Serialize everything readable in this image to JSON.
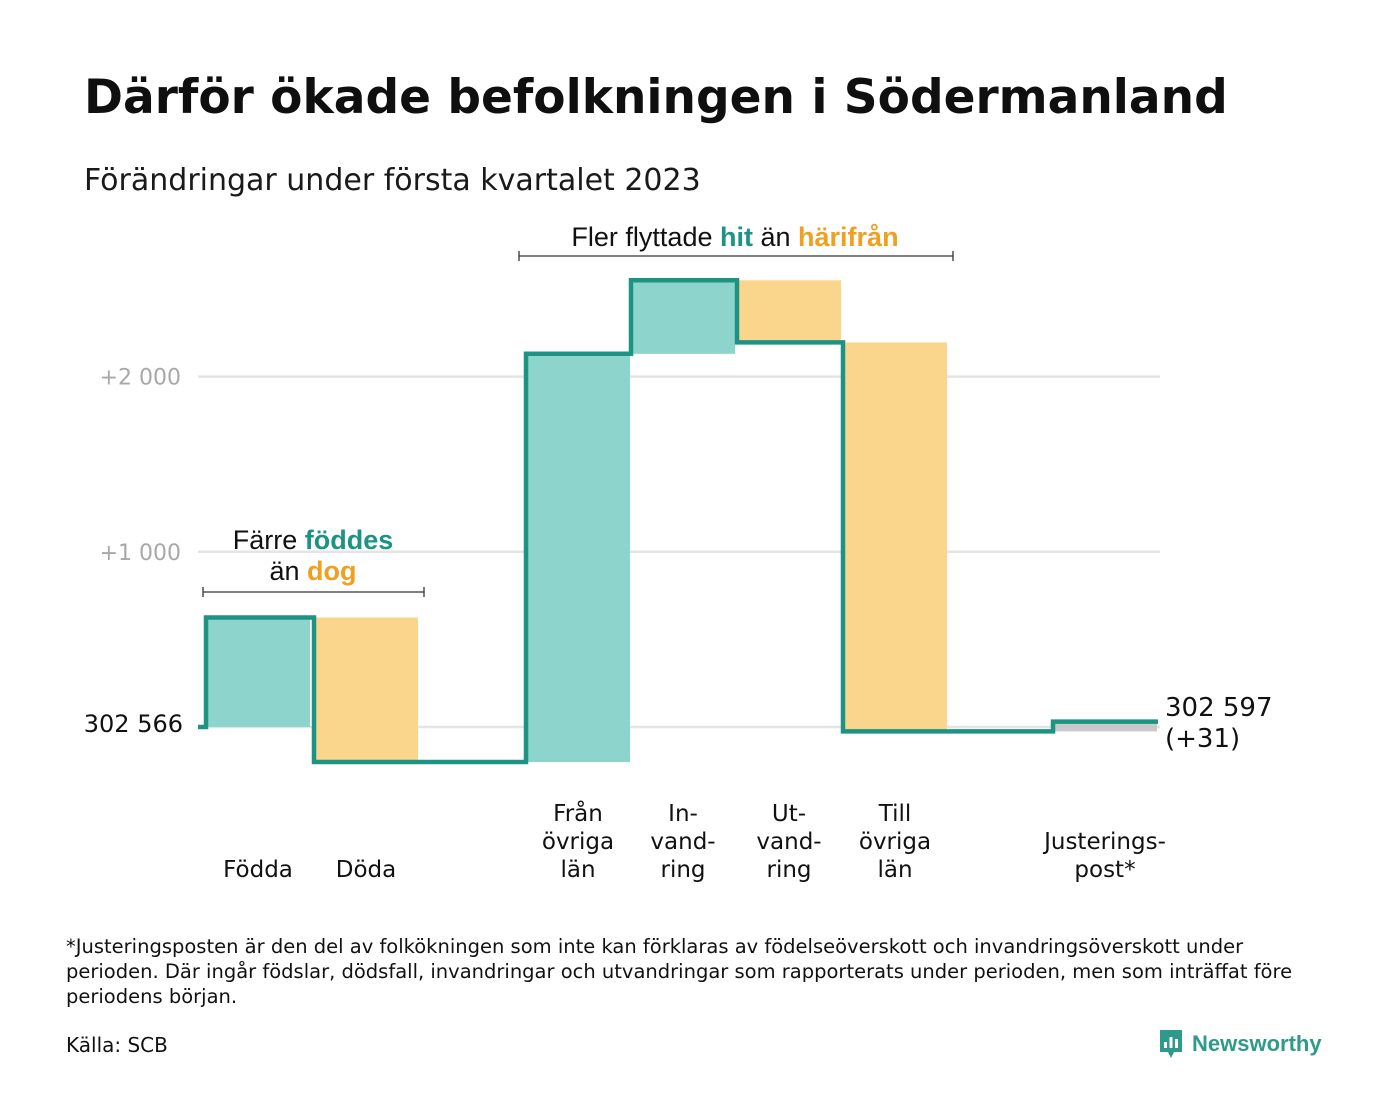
{
  "header": {
    "title": "Därför ökade befolkningen i Södermanland",
    "subtitle": "Förändringar under första kvartalet 2023"
  },
  "chart_data": {
    "type": "waterfall",
    "base_population": 302566,
    "base_label": "302 566",
    "end_label_value": "302 597",
    "end_label_change": "(+31)",
    "net_change": 31,
    "y_axis": {
      "unit": "cumulative change",
      "range": [
        -300,
        2600
      ],
      "gridlines": [
        0,
        1000,
        2000
      ],
      "tick_labels": [
        {
          "value": 1000,
          "label": "+1 000"
        },
        {
          "value": 2000,
          "label": "+2 000"
        }
      ],
      "grid": true
    },
    "steps": [
      {
        "id": "fodda",
        "label_lines": [
          "Födda"
        ],
        "change": 625,
        "kind": "in"
      },
      {
        "id": "doda",
        "label_lines": [
          "Döda"
        ],
        "change": -825,
        "kind": "out"
      },
      {
        "id": "fran",
        "label_lines": [
          "Från",
          "övriga",
          "län"
        ],
        "change": 2330,
        "kind": "in"
      },
      {
        "id": "in",
        "label_lines": [
          "In-",
          "vand-",
          "ring"
        ],
        "change": 420,
        "kind": "in"
      },
      {
        "id": "ut",
        "label_lines": [
          "Ut-",
          "vand-",
          "ring"
        ],
        "change": -355,
        "kind": "out"
      },
      {
        "id": "till",
        "label_lines": [
          "Till",
          "övriga",
          "län"
        ],
        "change": -2220,
        "kind": "out"
      },
      {
        "id": "just",
        "label_lines": [
          "Justerings-",
          "post*"
        ],
        "change": 56,
        "kind": "adjust"
      }
    ],
    "annotations": [
      {
        "id": "birth",
        "line1_parts": [
          "Färre ",
          "föddes"
        ],
        "line2_parts": [
          "än ",
          "dog"
        ]
      },
      {
        "id": "migration",
        "parts": [
          "Fler flyttade ",
          "hit",
          " än ",
          "härifrån"
        ]
      }
    ],
    "colors": {
      "in_fill": "#8dd5cc",
      "out_fill": "#fad68c",
      "adjust_fill": "#c9c9c9",
      "line": "#1d9384",
      "highlight_in": "#1d9384",
      "highlight_out": "#f0a020",
      "grid": "#e4e4e4"
    }
  },
  "footnote": "*Justeringsposten är den del av folkökningen som inte kan förklaras av födelseöverskott och invandringsöverskott under perioden. Där ingår födslar, dödsfall, invandringar och utvandringar som rapporterats under perioden, men som inträffat före periodens början.",
  "source": "Källa: SCB",
  "brand": {
    "name": "Newsworthy",
    "icon": "newsworthy-logo-icon"
  }
}
